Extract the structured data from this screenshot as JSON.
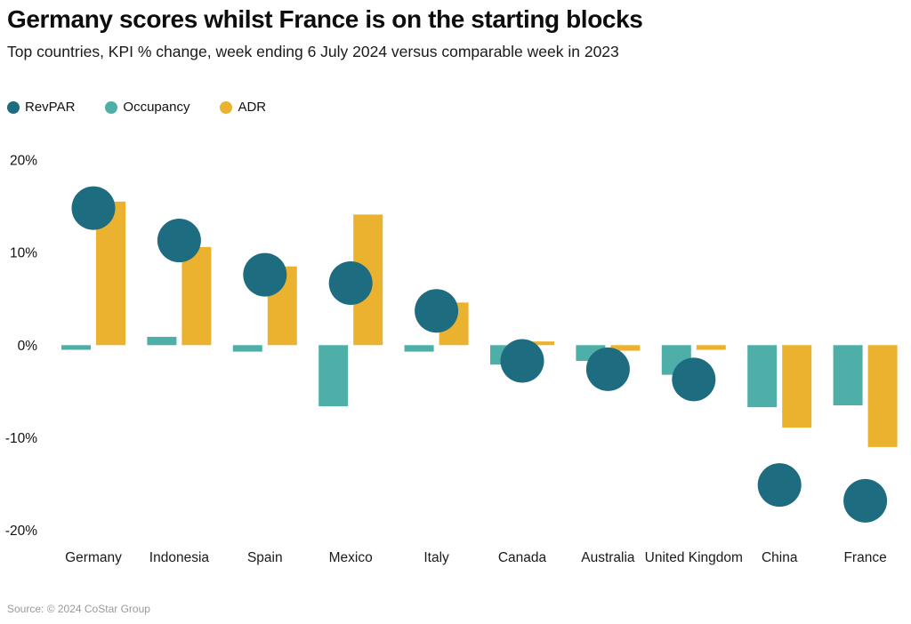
{
  "header": {
    "title": "Germany scores whilst France is on the starting blocks",
    "subtitle": "Top countries, KPI % change, week ending 6 July 2024 versus comparable week in 2023"
  },
  "legend": [
    {
      "label": "RevPAR",
      "color": "#1e6c80",
      "icon": "circle-marker"
    },
    {
      "label": "Occupancy",
      "color": "#4eafa9",
      "icon": "circle-marker"
    },
    {
      "label": "ADR",
      "color": "#ebb22f",
      "icon": "circle-marker"
    }
  ],
  "source": "Source: © 2024 CoStar Group",
  "chart_data": {
    "type": "bar",
    "title": "Germany scores whilst France is on the starting blocks",
    "subtitle": "Top countries, KPI % change, week ending 6 July 2024 versus comparable week in 2023",
    "categories": [
      "Germany",
      "Indonesia",
      "Spain",
      "Mexico",
      "Italy",
      "Canada",
      "Australia",
      "United Kingdom",
      "China",
      "France"
    ],
    "series": [
      {
        "name": "RevPAR",
        "mark": "circle",
        "color": "#1e6c80",
        "values": [
          14.8,
          11.3,
          7.6,
          6.7,
          3.7,
          -1.7,
          -2.6,
          -3.7,
          -15.1,
          -16.8
        ]
      },
      {
        "name": "Occupancy",
        "mark": "bar",
        "color": "#4eafa9",
        "values": [
          -0.5,
          0.9,
          -0.7,
          -6.6,
          -0.7,
          -2.1,
          -1.7,
          -3.2,
          -6.7,
          -6.5
        ]
      },
      {
        "name": "ADR",
        "mark": "bar",
        "color": "#ebb22f",
        "values": [
          15.5,
          10.6,
          8.5,
          14.1,
          4.6,
          0.4,
          -0.6,
          -0.5,
          -8.9,
          -11.0
        ]
      }
    ],
    "xlabel": "",
    "ylabel": "KPI % change",
    "ylim": [
      -20,
      20
    ],
    "yticks": [
      20,
      10,
      0,
      -10,
      -20
    ],
    "ytick_labels": [
      "20%",
      "10%",
      "0%",
      "-10%",
      "-20%"
    ],
    "grid": false,
    "axis_lines": false,
    "legend_position": "top-left",
    "text_color": "#111111"
  }
}
